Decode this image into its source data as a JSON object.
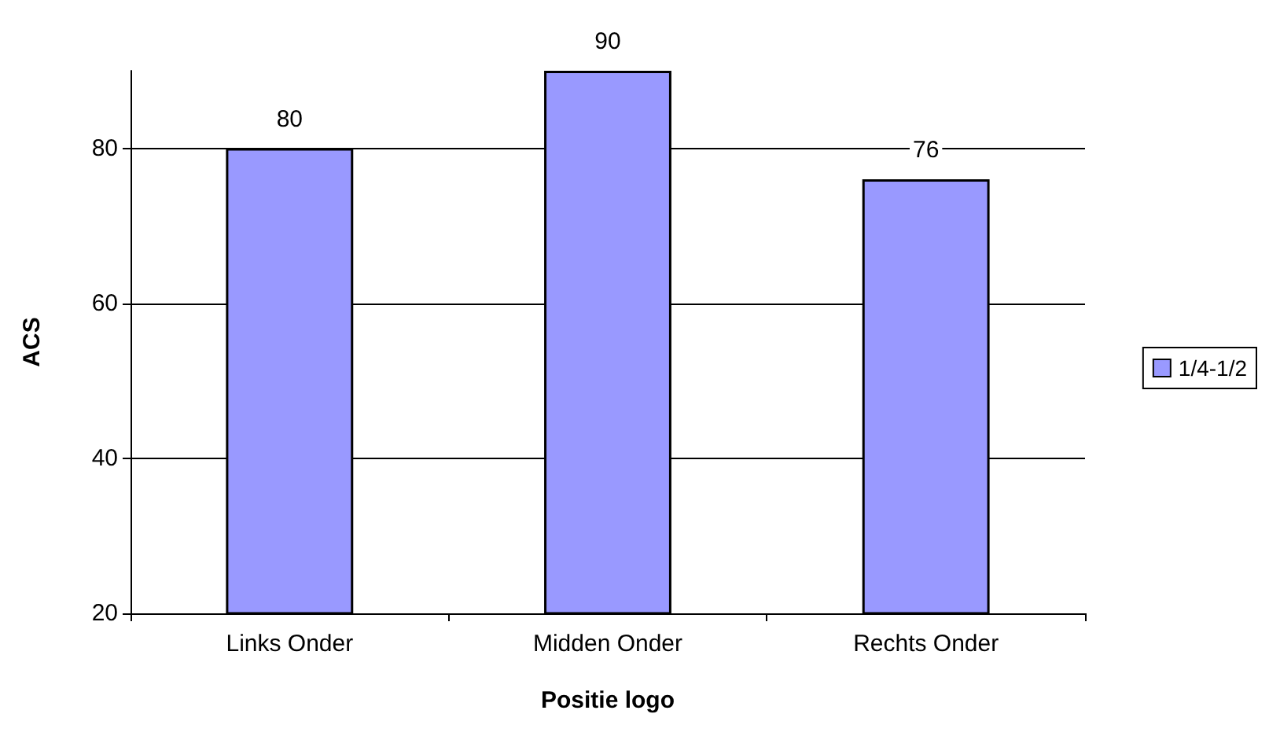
{
  "chart_data": {
    "type": "bar",
    "xlabel": "Positie logo",
    "ylabel": "ACS",
    "categories": [
      "Links Onder",
      "Midden Onder",
      "Rechts Onder"
    ],
    "series": [
      {
        "name": "1/4-1/2",
        "color": "#9999ff",
        "values": [
          80,
          90,
          76
        ]
      }
    ],
    "ylim": [
      20,
      90
    ],
    "yticks": [
      20,
      40,
      60,
      80
    ],
    "grid": "y",
    "legend": "right",
    "data_labels": true
  }
}
